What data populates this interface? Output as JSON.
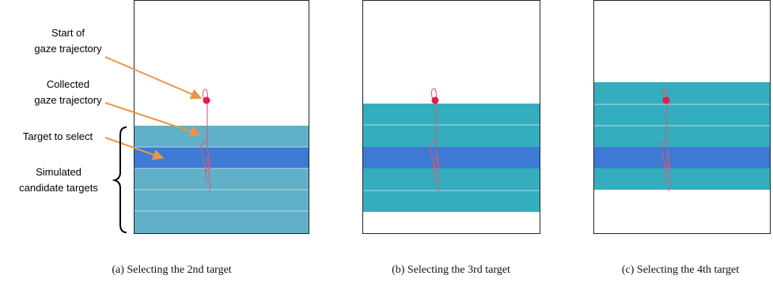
{
  "annotations": {
    "start_line1": "Start of",
    "start_line2": "gaze trajectory",
    "collected_line1": "Collected",
    "collected_line2": "gaze trajectory",
    "target": "Target to select",
    "simulated_line1": "Simulated",
    "simulated_line2": "candidate targets"
  },
  "captions": {
    "a": "(a) Selecting the 2nd target",
    "b": "(b) Selecting the 3rd target",
    "c": "(c) Selecting the 4th target"
  },
  "panels": [
    {
      "id": "a",
      "rows": 5,
      "selected_row": 2
    },
    {
      "id": "b",
      "rows": 5,
      "selected_row": 3
    },
    {
      "id": "c",
      "rows": 5,
      "selected_row": 4
    }
  ],
  "colors": {
    "row_panel_a": "#5fb0c8",
    "row_panel_bc": "#34aebf",
    "selected_row": "#3d7ad3",
    "trajectory": "#e0557a",
    "start_dot": "#e8194b",
    "arrow": "#e8954a",
    "frame": "#222222"
  }
}
